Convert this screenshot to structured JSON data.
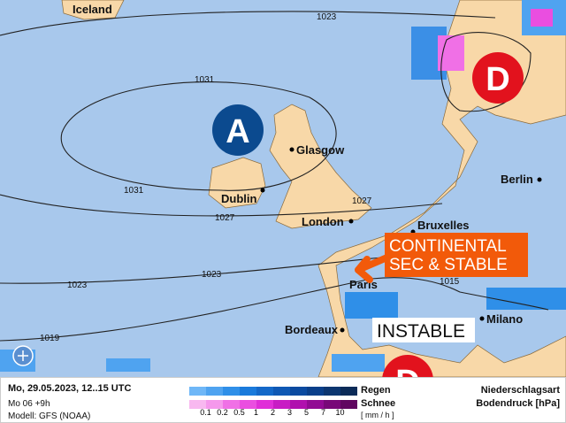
{
  "map": {
    "cities": [
      "Iceland",
      "Glasgow",
      "Dublin",
      "London",
      "Bruxelles",
      "Berlin",
      "Paris",
      "Milano",
      "Bordeaux"
    ],
    "isobars": [
      "1023",
      "1031",
      "1031",
      "1027",
      "1027",
      "1023",
      "1023",
      "1019",
      "1015"
    ],
    "pressure_centers": [
      {
        "label": "A",
        "type": "high",
        "color": "#0b4a8f"
      },
      {
        "label": "D",
        "type": "low",
        "color": "#e2121d"
      },
      {
        "label": "D",
        "type": "low",
        "color": "#e2121d"
      }
    ],
    "annotations": {
      "continental": "CONTINENTAL\nSEC & STABLE",
      "continental_line1": "CONTINENTAL",
      "continental_line2": "SEC & STABLE",
      "instable": "INSTABLE"
    },
    "colors": {
      "sea": "#a8c8ec",
      "land": "#f8d8a8",
      "annotation": "#f25a0a"
    }
  },
  "legend": {
    "date": "Mo, 29.05.2023, 12..15 UTC",
    "run": "Mo 06 +9h",
    "model": "Modell: GFS (NOAA)",
    "rain": "Regen",
    "snow": "Schnee",
    "unit": "[ mm / h ]",
    "ticks": [
      "0.1",
      "0.2",
      "0.5",
      "1",
      "2",
      "3",
      "5",
      "7",
      "10"
    ],
    "title1": "Niederschlagsart",
    "title2": "Bodendruck [hPa]",
    "rain_colors": [
      "#6fb7f7",
      "#4fa3f0",
      "#2f8fe8",
      "#1a7adb",
      "#1468c8",
      "#0f58b4",
      "#0b4aa0",
      "#0a3f8a",
      "#0c3670",
      "#0b2b58"
    ],
    "snow_colors": [
      "#f8b8f0",
      "#f598ec",
      "#f070e6",
      "#ea4ee0",
      "#e02ed8",
      "#c81cc4",
      "#b010ae",
      "#920a94",
      "#780878",
      "#600660"
    ]
  }
}
